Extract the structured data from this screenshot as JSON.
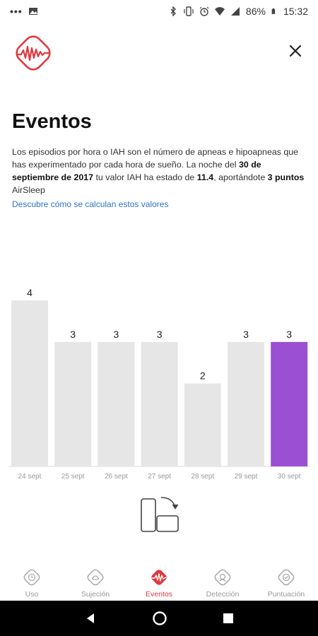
{
  "status_bar": {
    "battery": "86%",
    "time": "15:32"
  },
  "page": {
    "title": "Eventos",
    "desc_part1": "Los episodios por hora o IAH son el número de apneas e hipoapneas que has experimentado por cada hora de sueño. La noche del ",
    "desc_date": "30 de septiembre de 2017",
    "desc_part2": " tu valor IAH ha estado de ",
    "desc_value": "11.4",
    "desc_part3": ", aportándote ",
    "desc_points": "3 puntos",
    "desc_part4": " AirSleep",
    "link": "Descubre cómo se calculan estos valores"
  },
  "chart_data": {
    "type": "bar",
    "categories": [
      "24 sept",
      "25 sept",
      "26 sept",
      "27 sept",
      "28 sept",
      "29 sept",
      "30 sept"
    ],
    "values": [
      4,
      3,
      3,
      3,
      2,
      3,
      3
    ],
    "highlight_index": 6,
    "bar_color": "#e6e6e6",
    "highlight_color": "#9b4fd3",
    "ylim": [
      0,
      4
    ]
  },
  "bottom_nav": {
    "items": [
      {
        "label": "Uso",
        "icon": "usage-icon",
        "active": false
      },
      {
        "label": "Sujeción",
        "icon": "mask-seal-icon",
        "active": false
      },
      {
        "label": "Eventos",
        "icon": "events-wave-icon",
        "active": true
      },
      {
        "label": "Detección",
        "icon": "detection-icon",
        "active": false
      },
      {
        "label": "Puntuación",
        "icon": "score-icon",
        "active": false
      }
    ]
  },
  "colors": {
    "brand_red": "#e0393f",
    "link_blue": "#2f74c0"
  }
}
